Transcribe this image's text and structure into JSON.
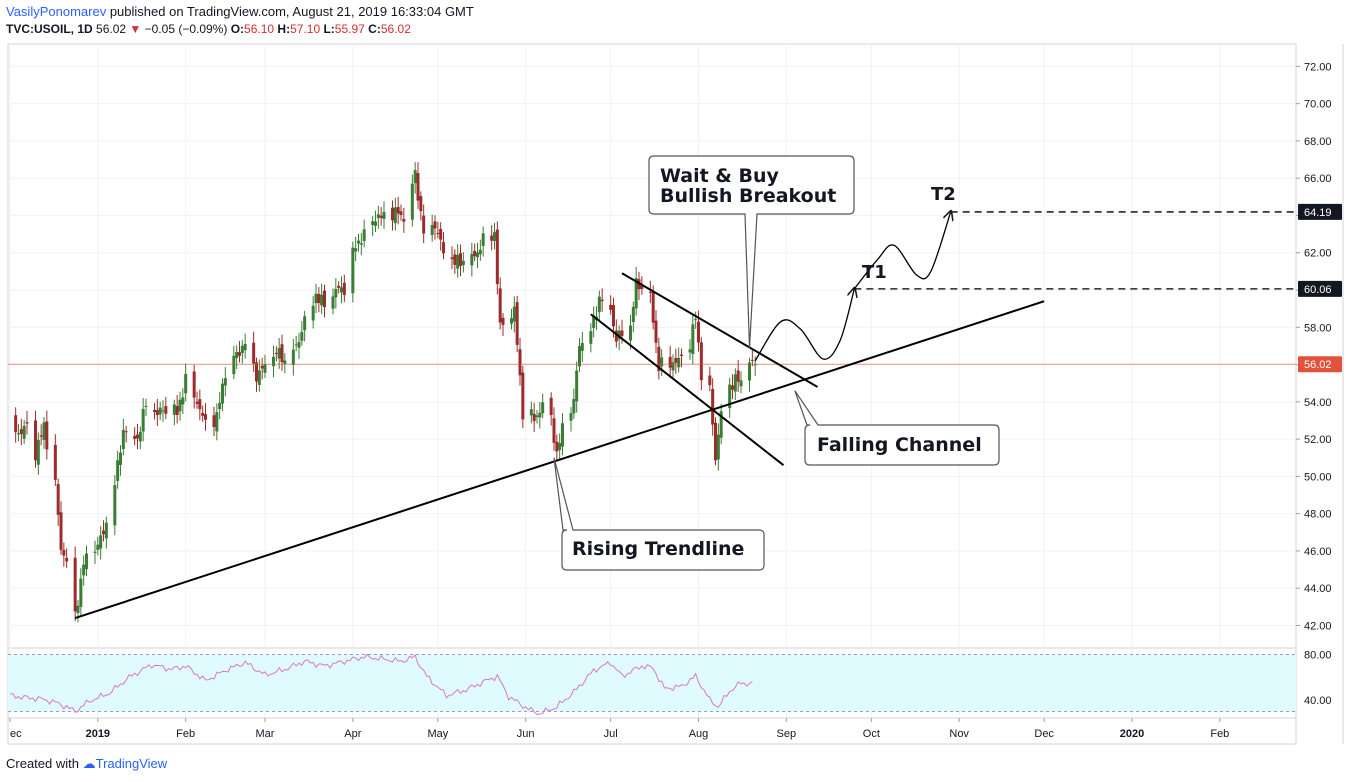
{
  "header": {
    "author": "VasilyPonomarev",
    "published": "published on TradingView.com, August 21, 2019 16:33:04 GMT",
    "symbol": "TVC:USOIL, 1D",
    "last": "56.02",
    "change": "−0.05 (−0.09%)",
    "o_label": "O:",
    "o": "56.10",
    "h_label": "H:",
    "h": "57.10",
    "l_label": "L:",
    "l": "55.97",
    "c_label": "C:",
    "c": "56.02"
  },
  "footer": {
    "created_with": "Created with",
    "brand": "TradingView"
  },
  "annotations": {
    "wait_buy_line1": "Wait & Buy",
    "wait_buy_line2": "Bullish Breakout",
    "falling_channel": "Falling Channel",
    "rising_trendline": "Rising Trendline",
    "t1": "T1",
    "t2": "T2"
  },
  "colors": {
    "up": "#3a7d34",
    "down": "#9c2b2b",
    "last_price": "#e0533d",
    "rsi_line": "#d879c8",
    "rsi_band": "#e0fbfd",
    "target_label": "#131722"
  },
  "chart_data": {
    "type": "candlestick",
    "symbol": "TVC:USOIL",
    "interval": "1D",
    "price_axis": {
      "range": [
        40.9,
        73.2
      ],
      "ticks": [
        "72.00",
        "70.00",
        "68.00",
        "66.00",
        "64.00",
        "62.00",
        "60.00",
        "58.00",
        "56.00",
        "54.00",
        "52.00",
        "50.00",
        "48.00",
        "46.00",
        "44.00",
        "42.00"
      ]
    },
    "time_axis": {
      "start": "2018-12-01",
      "labels": [
        {
          "text": "ec",
          "date": "2018-12-01"
        },
        {
          "text": "2019",
          "date": "2019-01-01"
        },
        {
          "text": "Feb",
          "date": "2019-02-01"
        },
        {
          "text": "Mar",
          "date": "2019-03-01"
        },
        {
          "text": "Apr",
          "date": "2019-04-01"
        },
        {
          "text": "May",
          "date": "2019-05-01"
        },
        {
          "text": "Jun",
          "date": "2019-06-01"
        },
        {
          "text": "Jul",
          "date": "2019-07-01"
        },
        {
          "text": "Aug",
          "date": "2019-08-01"
        },
        {
          "text": "Sep",
          "date": "2019-09-01"
        },
        {
          "text": "Oct",
          "date": "2019-10-01"
        },
        {
          "text": "Nov",
          "date": "2019-11-01"
        },
        {
          "text": "Dec",
          "date": "2019-12-01"
        },
        {
          "text": "2020",
          "date": "2020-01-01"
        },
        {
          "text": "Feb",
          "date": "2020-02-01"
        }
      ]
    },
    "close_path": [
      [
        "2018-12-01",
        53.0
      ],
      [
        "2018-12-04",
        52.4
      ],
      [
        "2018-12-07",
        52.6
      ],
      [
        "2018-12-10",
        51.2
      ],
      [
        "2018-12-13",
        52.6
      ],
      [
        "2018-12-17",
        49.5
      ],
      [
        "2018-12-19",
        46.2
      ],
      [
        "2018-12-21",
        45.6
      ],
      [
        "2018-12-24",
        42.6
      ],
      [
        "2018-12-27",
        45.3
      ],
      [
        "2019-01-02",
        46.5
      ],
      [
        "2019-01-06",
        48.5
      ],
      [
        "2019-01-10",
        52.6
      ],
      [
        "2019-01-15",
        52.1
      ],
      [
        "2019-01-18",
        53.8
      ],
      [
        "2019-01-22",
        53.3
      ],
      [
        "2019-01-25",
        53.6
      ],
      [
        "2019-01-29",
        53.4
      ],
      [
        "2019-02-01",
        55.3
      ],
      [
        "2019-02-05",
        54.1
      ],
      [
        "2019-02-08",
        52.7
      ],
      [
        "2019-02-12",
        53.1
      ],
      [
        "2019-02-15",
        55.6
      ],
      [
        "2019-02-19",
        56.5
      ],
      [
        "2019-02-22",
        57.3
      ],
      [
        "2019-02-26",
        55.5
      ],
      [
        "2019-03-01",
        55.8
      ],
      [
        "2019-03-05",
        56.6
      ],
      [
        "2019-03-08",
        56.2
      ],
      [
        "2019-03-12",
        56.9
      ],
      [
        "2019-03-15",
        58.5
      ],
      [
        "2019-03-19",
        59.8
      ],
      [
        "2019-03-22",
        59.1
      ],
      [
        "2019-03-26",
        59.9
      ],
      [
        "2019-03-29",
        60.1
      ],
      [
        "2019-04-02",
        62.4
      ],
      [
        "2019-04-05",
        63.1
      ],
      [
        "2019-04-09",
        64.0
      ],
      [
        "2019-04-12",
        63.8
      ],
      [
        "2019-04-16",
        64.1
      ],
      [
        "2019-04-19",
        63.9
      ],
      [
        "2019-04-23",
        66.2
      ],
      [
        "2019-04-26",
        63.2
      ],
      [
        "2019-04-30",
        63.6
      ],
      [
        "2019-05-03",
        61.9
      ],
      [
        "2019-05-07",
        61.4
      ],
      [
        "2019-05-10",
        61.6
      ],
      [
        "2019-05-14",
        61.8
      ],
      [
        "2019-05-17",
        62.8
      ],
      [
        "2019-05-21",
        63.1
      ],
      [
        "2019-05-23",
        57.9
      ],
      [
        "2019-05-28",
        58.8
      ],
      [
        "2019-05-31",
        53.5
      ],
      [
        "2019-06-04",
        53.1
      ],
      [
        "2019-06-07",
        53.9
      ],
      [
        "2019-06-10",
        53.3
      ],
      [
        "2019-06-12",
        51.1
      ],
      [
        "2019-06-14",
        52.5
      ],
      [
        "2019-06-18",
        53.9
      ],
      [
        "2019-06-20",
        57.1
      ],
      [
        "2019-06-24",
        57.8
      ],
      [
        "2019-06-27",
        59.6
      ],
      [
        "2019-07-01",
        59.1
      ],
      [
        "2019-07-03",
        57.3
      ],
      [
        "2019-07-05",
        57.6
      ],
      [
        "2019-07-08",
        57.9
      ],
      [
        "2019-07-10",
        60.3
      ],
      [
        "2019-07-12",
        60.2
      ],
      [
        "2019-07-15",
        59.6
      ],
      [
        "2019-07-18",
        56.0
      ],
      [
        "2019-07-22",
        56.2
      ],
      [
        "2019-07-25",
        56.1
      ],
      [
        "2019-07-29",
        57.0
      ],
      [
        "2019-07-31",
        58.5
      ],
      [
        "2019-08-02",
        55.6
      ],
      [
        "2019-08-05",
        54.6
      ],
      [
        "2019-08-07",
        51.1
      ],
      [
        "2019-08-09",
        53.5
      ],
      [
        "2019-08-12",
        54.9
      ],
      [
        "2019-08-14",
        55.2
      ],
      [
        "2019-08-16",
        54.9
      ],
      [
        "2019-08-19",
        56.1
      ],
      [
        "2019-08-21",
        56.02
      ]
    ],
    "last_price": 56.02,
    "price_tags": [
      {
        "value": 64.19,
        "text": "64.19",
        "style": "target"
      },
      {
        "value": 60.06,
        "text": "60.06",
        "style": "target"
      },
      {
        "value": 56.02,
        "text": "56.02",
        "style": "last"
      }
    ],
    "rising_trendline": [
      [
        "2018-12-24",
        42.4
      ],
      [
        "2019-12-01",
        59.4
      ]
    ],
    "falling_channel": {
      "upper": [
        [
          "2019-07-05",
          60.9
        ],
        [
          "2019-09-12",
          54.8
        ]
      ],
      "lower": [
        [
          "2019-06-24",
          58.7
        ],
        [
          "2019-08-31",
          50.6
        ]
      ]
    },
    "projected_path": [
      [
        "2019-08-21",
        56.2
      ],
      [
        "2019-08-30",
        58.3
      ],
      [
        "2019-09-06",
        57.9
      ],
      [
        "2019-09-14",
        56.3
      ],
      [
        "2019-09-20",
        57.3
      ],
      [
        "2019-09-25",
        60.06
      ],
      [
        "2019-10-03",
        61.6
      ],
      [
        "2019-10-09",
        62.4
      ],
      [
        "2019-10-17",
        60.8
      ],
      [
        "2019-10-22",
        61.0
      ],
      [
        "2019-10-29",
        64.19
      ]
    ],
    "targets": [
      {
        "name": "T1",
        "value": 60.06,
        "from": "2019-09-25"
      },
      {
        "name": "T2",
        "value": 64.19,
        "from": "2019-10-29"
      }
    ],
    "rsi": {
      "range": [
        26,
        84
      ],
      "levels": [
        80,
        30
      ],
      "ticks": [
        "80.00",
        "40.00"
      ],
      "values": [
        [
          "2018-12-01",
          44
        ],
        [
          "2018-12-07",
          42
        ],
        [
          "2018-12-12",
          41
        ],
        [
          "2018-12-17",
          38
        ],
        [
          "2018-12-21",
          34
        ],
        [
          "2018-12-24",
          30
        ],
        [
          "2018-12-29",
          39
        ],
        [
          "2019-01-05",
          46
        ],
        [
          "2019-01-12",
          60
        ],
        [
          "2019-01-20",
          71
        ],
        [
          "2019-01-27",
          67
        ],
        [
          "2019-02-01",
          70
        ],
        [
          "2019-02-08",
          57
        ],
        [
          "2019-02-15",
          66
        ],
        [
          "2019-02-22",
          73
        ],
        [
          "2019-03-01",
          62
        ],
        [
          "2019-03-08",
          67
        ],
        [
          "2019-03-15",
          74
        ],
        [
          "2019-03-22",
          70
        ],
        [
          "2019-03-29",
          74
        ],
        [
          "2019-04-05",
          78
        ],
        [
          "2019-04-12",
          76
        ],
        [
          "2019-04-18",
          74
        ],
        [
          "2019-04-23",
          78
        ],
        [
          "2019-04-27",
          61
        ],
        [
          "2019-05-04",
          44
        ],
        [
          "2019-05-11",
          49
        ],
        [
          "2019-05-18",
          57
        ],
        [
          "2019-05-22",
          61
        ],
        [
          "2019-05-26",
          43
        ],
        [
          "2019-06-02",
          32
        ],
        [
          "2019-06-06",
          28
        ],
        [
          "2019-06-12",
          34
        ],
        [
          "2019-06-18",
          47
        ],
        [
          "2019-06-25",
          66
        ],
        [
          "2019-07-01",
          73
        ],
        [
          "2019-07-05",
          61
        ],
        [
          "2019-07-12",
          70
        ],
        [
          "2019-07-16",
          68
        ],
        [
          "2019-07-20",
          50
        ],
        [
          "2019-07-26",
          52
        ],
        [
          "2019-07-31",
          61
        ],
        [
          "2019-08-05",
          40
        ],
        [
          "2019-08-08",
          34
        ],
        [
          "2019-08-12",
          48
        ],
        [
          "2019-08-16",
          55
        ],
        [
          "2019-08-21",
          54
        ]
      ]
    }
  }
}
